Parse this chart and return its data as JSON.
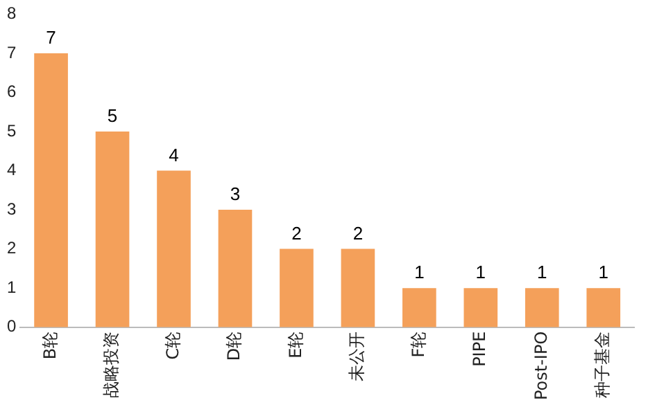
{
  "chart_data": {
    "type": "bar",
    "categories": [
      "B轮",
      "战略投资",
      "C轮",
      "D轮",
      "E轮",
      "未公开",
      "F轮",
      "PIPE",
      "Post-IPO",
      "种子基金"
    ],
    "values": [
      7,
      5,
      4,
      3,
      2,
      2,
      1,
      1,
      1,
      1
    ],
    "color": "#f4a05a",
    "ylim": [
      0,
      8
    ],
    "yticks": [
      0,
      1,
      2,
      3,
      4,
      5,
      6,
      7,
      8
    ],
    "grid": false,
    "legend": false,
    "data_labels": true
  }
}
